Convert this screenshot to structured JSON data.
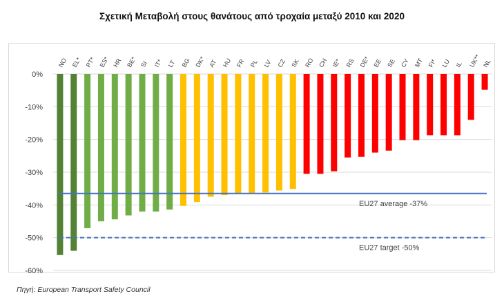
{
  "title": "Σχετική Μεταβολή στους θανάτους από τροχαία μεταξύ 2010 και 2020",
  "source": "Πηγή: European Transport Safety Council",
  "chart_data": {
    "type": "bar",
    "ylim": [
      -60,
      0
    ],
    "yticks": [
      0,
      -10,
      -20,
      -30,
      -40,
      -50,
      -60
    ],
    "ytick_labels": [
      "0%",
      "-10%",
      "-20%",
      "-30%",
      "-40%",
      "-50%",
      "-60%"
    ],
    "grid": true,
    "categories": [
      "NO",
      "EL*",
      "PT*",
      "ES*",
      "HR",
      "BE*",
      "SI",
      "IT*",
      "LT",
      "BG",
      "DK*",
      "AT",
      "HU",
      "FR",
      "PL",
      "LV",
      "CZ",
      "SK",
      "RO",
      "CH",
      "IE*",
      "RS",
      "DE*",
      "EE",
      "SE",
      "CY",
      "MT",
      "FI*",
      "LU",
      "IL",
      "UK**",
      "NL"
    ],
    "values": [
      -55.3,
      -54.0,
      -47.1,
      -45.0,
      -44.4,
      -43.2,
      -42.0,
      -42.0,
      -41.4,
      -40.3,
      -39.1,
      -37.5,
      -37.0,
      -36.7,
      -36.5,
      -36.2,
      -35.6,
      -35.1,
      -30.5,
      -30.5,
      -29.7,
      -25.5,
      -25.3,
      -24.0,
      -23.4,
      -20.2,
      -20.2,
      -18.7,
      -18.7,
      -18.7,
      -14.0,
      -4.8
    ],
    "colors": [
      "#548235",
      "#548235",
      "#70AD47",
      "#70AD47",
      "#70AD47",
      "#70AD47",
      "#70AD47",
      "#70AD47",
      "#70AD47",
      "#FFC000",
      "#FFC000",
      "#FFC000",
      "#FFC000",
      "#FFC000",
      "#FFC000",
      "#FFC000",
      "#FFC000",
      "#FFC000",
      "#FF0000",
      "#FF0000",
      "#FF0000",
      "#FF0000",
      "#FF0000",
      "#FF0000",
      "#FF0000",
      "#FF0000",
      "#FF0000",
      "#FF0000",
      "#FF0000",
      "#FF0000",
      "#FF0000",
      "#FF0000"
    ],
    "reference_lines": [
      {
        "value": -36.5,
        "label": "EU27 average -37%",
        "style": "solid",
        "color": "#4472C4"
      },
      {
        "value": -50,
        "label": "EU27 target -50%",
        "style": "dashed",
        "color": "#4472C4"
      }
    ]
  }
}
